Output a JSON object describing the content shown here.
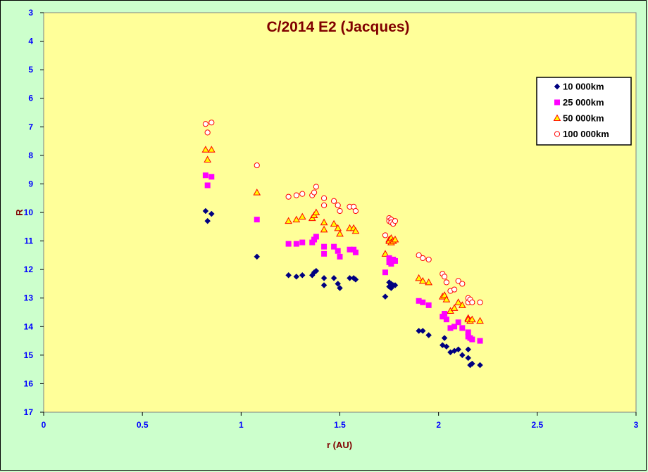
{
  "chart_data": {
    "type": "scatter",
    "title": "C/2014 E2 (Jacques)",
    "xlabel": "r (AU)",
    "ylabel": "R",
    "xlim": [
      0,
      3
    ],
    "ylim": [
      3,
      17
    ],
    "y_reversed": true,
    "x_ticks": [
      "0",
      "0.5",
      "1",
      "1.5",
      "2",
      "2.5",
      "3"
    ],
    "y_ticks": [
      "3",
      "4",
      "5",
      "6",
      "7",
      "8",
      "9",
      "10",
      "11",
      "12",
      "13",
      "14",
      "15",
      "16",
      "17"
    ],
    "grid": false,
    "legend_position": "top-right",
    "plot_background": "#ffff99",
    "chart_background": "#ccffcc",
    "series": [
      {
        "name": "10 000km",
        "marker": "diamond",
        "color": "#000080",
        "points": [
          [
            0.82,
            9.95
          ],
          [
            0.83,
            10.3
          ],
          [
            0.85,
            10.05
          ],
          [
            1.08,
            11.55
          ],
          [
            1.24,
            12.2
          ],
          [
            1.28,
            12.25
          ],
          [
            1.31,
            12.2
          ],
          [
            1.36,
            12.2
          ],
          [
            1.37,
            12.1
          ],
          [
            1.38,
            12.05
          ],
          [
            1.42,
            12.3
          ],
          [
            1.42,
            12.55
          ],
          [
            1.47,
            12.3
          ],
          [
            1.49,
            12.5
          ],
          [
            1.5,
            12.65
          ],
          [
            1.55,
            12.3
          ],
          [
            1.57,
            12.3
          ],
          [
            1.58,
            12.35
          ],
          [
            1.73,
            12.95
          ],
          [
            1.75,
            12.45
          ],
          [
            1.75,
            12.6
          ],
          [
            1.76,
            12.5
          ],
          [
            1.76,
            12.65
          ],
          [
            1.77,
            12.55
          ],
          [
            1.78,
            12.55
          ],
          [
            1.9,
            14.15
          ],
          [
            1.92,
            14.15
          ],
          [
            1.95,
            14.3
          ],
          [
            2.02,
            14.65
          ],
          [
            2.03,
            14.4
          ],
          [
            2.04,
            14.7
          ],
          [
            2.06,
            14.9
          ],
          [
            2.08,
            14.85
          ],
          [
            2.1,
            14.8
          ],
          [
            2.12,
            15.0
          ],
          [
            2.15,
            14.8
          ],
          [
            2.15,
            15.1
          ],
          [
            2.16,
            15.35
          ],
          [
            2.17,
            15.3
          ],
          [
            2.21,
            15.35
          ]
        ]
      },
      {
        "name": "25 000km",
        "marker": "square",
        "color": "#ff00ff",
        "points": [
          [
            0.82,
            8.7
          ],
          [
            0.83,
            9.05
          ],
          [
            0.85,
            8.75
          ],
          [
            1.08,
            10.25
          ],
          [
            1.24,
            11.1
          ],
          [
            1.28,
            11.1
          ],
          [
            1.31,
            11.05
          ],
          [
            1.36,
            11.05
          ],
          [
            1.37,
            10.95
          ],
          [
            1.38,
            10.85
          ],
          [
            1.42,
            11.2
          ],
          [
            1.42,
            11.45
          ],
          [
            1.47,
            11.2
          ],
          [
            1.49,
            11.35
          ],
          [
            1.5,
            11.55
          ],
          [
            1.55,
            11.3
          ],
          [
            1.57,
            11.3
          ],
          [
            1.58,
            11.4
          ],
          [
            1.73,
            12.1
          ],
          [
            1.75,
            11.6
          ],
          [
            1.75,
            11.75
          ],
          [
            1.76,
            11.7
          ],
          [
            1.76,
            11.8
          ],
          [
            1.77,
            11.65
          ],
          [
            1.78,
            11.7
          ],
          [
            1.9,
            13.1
          ],
          [
            1.92,
            13.15
          ],
          [
            1.95,
            13.25
          ],
          [
            2.02,
            13.65
          ],
          [
            2.03,
            13.55
          ],
          [
            2.04,
            13.75
          ],
          [
            2.06,
            14.05
          ],
          [
            2.08,
            14.0
          ],
          [
            2.1,
            13.85
          ],
          [
            2.12,
            14.05
          ],
          [
            2.15,
            14.2
          ],
          [
            2.15,
            14.35
          ],
          [
            2.16,
            14.4
          ],
          [
            2.17,
            14.45
          ],
          [
            2.21,
            14.5
          ]
        ]
      },
      {
        "name": "50 000km",
        "marker": "triangle",
        "color": "#ff0000",
        "fill": "#ffff00",
        "points": [
          [
            0.82,
            7.8
          ],
          [
            0.83,
            8.15
          ],
          [
            0.85,
            7.8
          ],
          [
            1.08,
            9.3
          ],
          [
            1.24,
            10.3
          ],
          [
            1.28,
            10.25
          ],
          [
            1.31,
            10.15
          ],
          [
            1.36,
            10.2
          ],
          [
            1.37,
            10.1
          ],
          [
            1.38,
            10.0
          ],
          [
            1.42,
            10.35
          ],
          [
            1.42,
            10.6
          ],
          [
            1.47,
            10.4
          ],
          [
            1.49,
            10.55
          ],
          [
            1.5,
            10.75
          ],
          [
            1.55,
            10.55
          ],
          [
            1.57,
            10.55
          ],
          [
            1.58,
            10.65
          ],
          [
            1.73,
            11.45
          ],
          [
            1.75,
            10.95
          ],
          [
            1.75,
            11.0
          ],
          [
            1.76,
            10.9
          ],
          [
            1.76,
            11.05
          ],
          [
            1.77,
            11.0
          ],
          [
            1.78,
            10.95
          ],
          [
            1.9,
            12.3
          ],
          [
            1.92,
            12.4
          ],
          [
            1.95,
            12.45
          ],
          [
            2.02,
            12.95
          ],
          [
            2.03,
            12.9
          ],
          [
            2.04,
            13.05
          ],
          [
            2.06,
            13.45
          ],
          [
            2.08,
            13.35
          ],
          [
            2.1,
            13.15
          ],
          [
            2.12,
            13.25
          ],
          [
            2.15,
            13.7
          ],
          [
            2.15,
            13.75
          ],
          [
            2.16,
            13.8
          ],
          [
            2.17,
            13.75
          ],
          [
            2.21,
            13.8
          ]
        ]
      },
      {
        "name": "100 000km",
        "marker": "circle",
        "color": "#ff0000",
        "fill": "#ffffff",
        "points": [
          [
            0.82,
            6.9
          ],
          [
            0.83,
            7.2
          ],
          [
            0.85,
            6.85
          ],
          [
            1.08,
            8.35
          ],
          [
            1.24,
            9.45
          ],
          [
            1.28,
            9.4
          ],
          [
            1.31,
            9.35
          ],
          [
            1.36,
            9.4
          ],
          [
            1.37,
            9.3
          ],
          [
            1.38,
            9.1
          ],
          [
            1.42,
            9.5
          ],
          [
            1.42,
            9.75
          ],
          [
            1.47,
            9.6
          ],
          [
            1.49,
            9.75
          ],
          [
            1.5,
            9.95
          ],
          [
            1.55,
            9.8
          ],
          [
            1.57,
            9.8
          ],
          [
            1.58,
            9.95
          ],
          [
            1.73,
            10.8
          ],
          [
            1.75,
            10.2
          ],
          [
            1.75,
            10.3
          ],
          [
            1.76,
            10.25
          ],
          [
            1.76,
            10.35
          ],
          [
            1.77,
            10.4
          ],
          [
            1.78,
            10.3
          ],
          [
            1.9,
            11.5
          ],
          [
            1.92,
            11.6
          ],
          [
            1.95,
            11.65
          ],
          [
            2.02,
            12.15
          ],
          [
            2.03,
            12.25
          ],
          [
            2.04,
            12.45
          ],
          [
            2.06,
            12.75
          ],
          [
            2.08,
            12.7
          ],
          [
            2.1,
            12.4
          ],
          [
            2.12,
            12.5
          ],
          [
            2.15,
            13.0
          ],
          [
            2.15,
            13.15
          ],
          [
            2.16,
            13.05
          ],
          [
            2.17,
            13.15
          ],
          [
            2.21,
            13.15
          ]
        ]
      }
    ]
  }
}
